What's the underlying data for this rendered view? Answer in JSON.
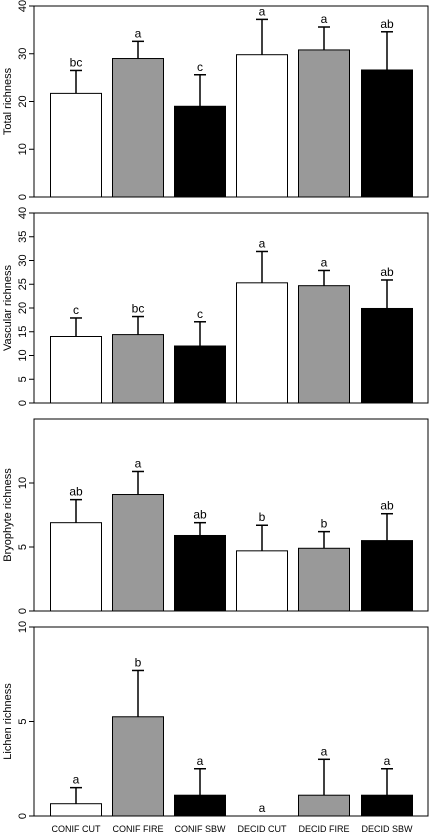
{
  "chart_data": [
    {
      "type": "bar",
      "ylabel": "Total richness",
      "ylim": [
        0,
        40
      ],
      "yticks": [
        0,
        10,
        20,
        30,
        40
      ],
      "categories": [
        "CONIF CUT",
        "CONIF FIRE",
        "CONIF SBW",
        "DECID CUT",
        "DECID FIRE",
        "DECID SBW"
      ],
      "values": [
        21.7,
        29.0,
        19.0,
        29.8,
        30.8,
        26.6
      ],
      "errors": [
        4.8,
        3.6,
        6.6,
        7.4,
        4.8,
        8.0
      ],
      "letters": [
        "bc",
        "a",
        "c",
        "a",
        "a",
        "ab"
      ],
      "fill_colors": [
        "#ffffff",
        "#999999",
        "#000000",
        "#ffffff",
        "#999999",
        "#000000"
      ]
    },
    {
      "type": "bar",
      "ylabel": "Vascular richness",
      "ylim": [
        0,
        40
      ],
      "yticks": [
        0,
        5,
        10,
        15,
        20,
        25,
        30,
        35,
        40
      ],
      "categories": [
        "CONIF CUT",
        "CONIF FIRE",
        "CONIF SBW",
        "DECID CUT",
        "DECID FIRE",
        "DECID SBW"
      ],
      "values": [
        14.0,
        14.4,
        12.0,
        25.3,
        24.7,
        19.9
      ],
      "errors": [
        3.9,
        3.8,
        5.1,
        6.6,
        3.2,
        6.0
      ],
      "letters": [
        "c",
        "bc",
        "c",
        "a",
        "a",
        "ab"
      ],
      "fill_colors": [
        "#ffffff",
        "#999999",
        "#000000",
        "#ffffff",
        "#999999",
        "#000000"
      ]
    },
    {
      "type": "bar",
      "ylabel": "Bryophyte richness",
      "ylim": [
        0,
        15
      ],
      "yticks": [
        0,
        5,
        10
      ],
      "categories": [
        "CONIF CUT",
        "CONIF FIRE",
        "CONIF SBW",
        "DECID CUT",
        "DECID FIRE",
        "DECID SBW"
      ],
      "values": [
        6.9,
        9.1,
        5.9,
        4.7,
        4.9,
        5.5
      ],
      "errors": [
        1.8,
        1.8,
        1.0,
        2.0,
        1.3,
        2.1
      ],
      "letters": [
        "ab",
        "a",
        "ab",
        "b",
        "b",
        "ab"
      ],
      "fill_colors": [
        "#ffffff",
        "#999999",
        "#000000",
        "#ffffff",
        "#999999",
        "#000000"
      ]
    },
    {
      "type": "bar",
      "ylabel": "Lichen richness",
      "ylim": [
        0,
        10
      ],
      "yticks": [
        0,
        5,
        10
      ],
      "categories": [
        "CONIF CUT",
        "CONIF FIRE",
        "CONIF SBW",
        "DECID CUT",
        "DECID FIRE",
        "DECID SBW"
      ],
      "values": [
        0.65,
        5.25,
        1.1,
        0.0,
        1.1,
        1.1
      ],
      "errors": [
        0.85,
        2.45,
        1.4,
        0.0,
        1.9,
        1.4
      ],
      "letters": [
        "a",
        "b",
        "a",
        "a",
        "a",
        "a"
      ],
      "fill_colors": [
        "#ffffff",
        "#999999",
        "#000000",
        "#ffffff",
        "#999999",
        "#000000"
      ]
    }
  ]
}
